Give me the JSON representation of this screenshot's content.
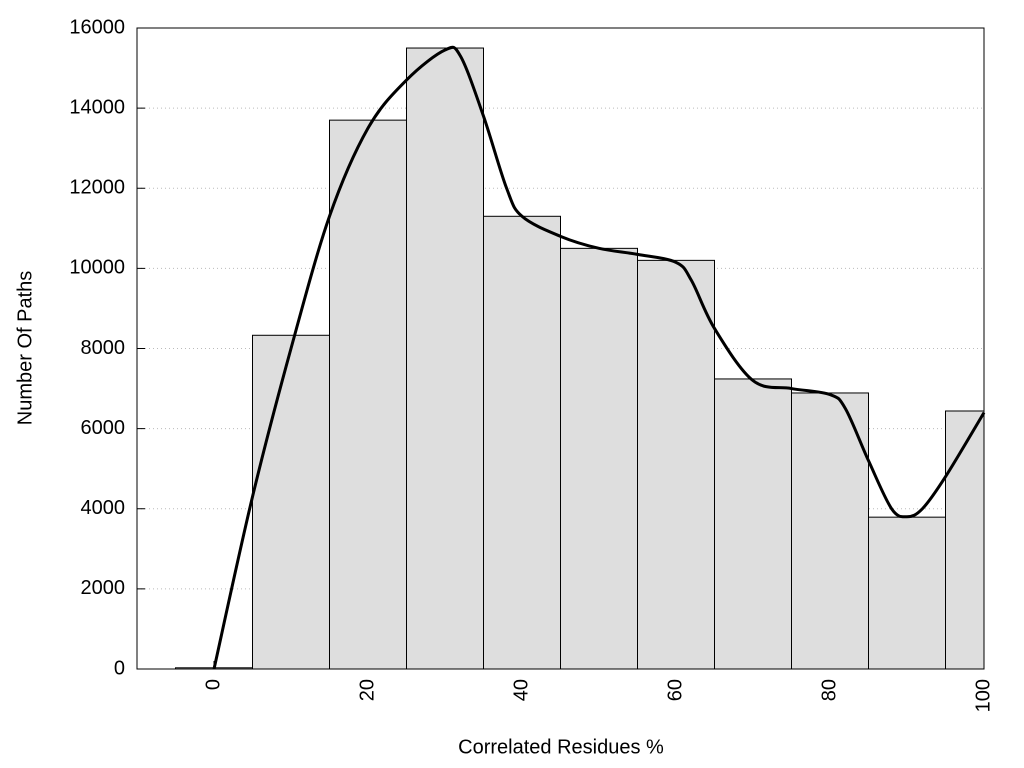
{
  "chart_data": {
    "type": "histogram",
    "x_label": "Correlated Residues %",
    "y_label": "Number Of Paths",
    "bins": [
      -5,
      5,
      15,
      25,
      35,
      45,
      55,
      65,
      75,
      85,
      95,
      100
    ],
    "values": [
      30,
      8330,
      13700,
      15500,
      11300,
      10500,
      10200,
      7240,
      6890,
      3790,
      6440
    ],
    "color": "#dedede",
    "curve": {
      "color": "#000000",
      "x": [
        0,
        5,
        10,
        15,
        20,
        25,
        30,
        32,
        35,
        38,
        40,
        45,
        50,
        55,
        60,
        62,
        65,
        70,
        75,
        80,
        82,
        85,
        88,
        90,
        92,
        95,
        100
      ],
      "y": [
        0,
        4300,
        8000,
        11300,
        13500,
        14700,
        15450,
        15300,
        13800,
        12000,
        11300,
        10800,
        10500,
        10350,
        10150,
        9700,
        8500,
        7200,
        7000,
        6850,
        6500,
        5200,
        4000,
        3800,
        4000,
        4800,
        6400
      ]
    },
    "xlim": [
      -10,
      100
    ],
    "ylim": [
      0,
      16000
    ],
    "xticks": [
      0,
      20,
      40,
      60,
      80,
      100
    ],
    "yticks": [
      0,
      2000,
      4000,
      6000,
      8000,
      10000,
      12000,
      14000,
      16000
    ],
    "grid": true
  }
}
